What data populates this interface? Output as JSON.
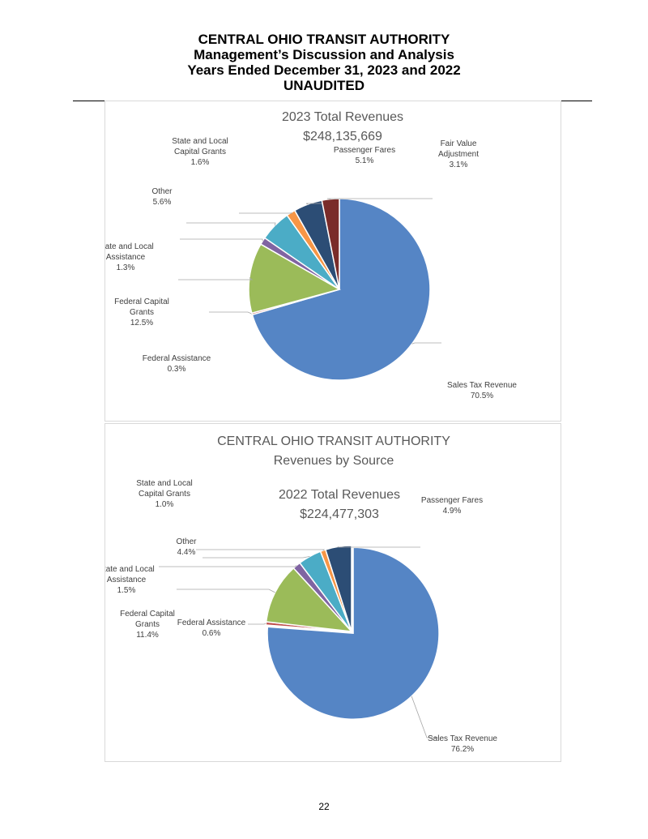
{
  "header": {
    "line1": "CENTRAL OHIO TRANSIT AUTHORITY",
    "line2": "Management’s Discussion and Analysis",
    "line3": "Years Ended December 31, 2023 and 2022",
    "line4": "UNAUDITED"
  },
  "page_number": "22",
  "colors": {
    "Sales Tax Revenue": "#5585c5",
    "Federal Assistance": "#c0504d",
    "Federal Capital Grants": "#9bbb59",
    "State and Local Assistance": "#8064a2",
    "Other": "#4bacc6",
    "State and Local Capital Grants": "#f79646",
    "Passenger Fares": "#2c4d75",
    "Fair Value Adjustment": "#7a2c2a"
  },
  "chart_data": [
    {
      "type": "pie",
      "title": "2023 Total Revenues",
      "subtitle": "$248,135,669",
      "start_at": "12 o'clock, clockwise",
      "slices": [
        {
          "label": [
            "Sales Tax Revenue"
          ],
          "value": 70.5,
          "pct": "70.5%"
        },
        {
          "label": [
            "Federal Assistance"
          ],
          "value": 0.3,
          "pct": "0.3%"
        },
        {
          "label": [
            "Federal Capital",
            "Grants"
          ],
          "value": 12.5,
          "pct": "12.5%"
        },
        {
          "label": [
            "State and Local",
            "Assistance"
          ],
          "value": 1.3,
          "pct": "1.3%"
        },
        {
          "label": [
            "Other"
          ],
          "value": 5.6,
          "pct": "5.6%"
        },
        {
          "label": [
            "State and Local",
            "Capital Grants"
          ],
          "value": 1.6,
          "pct": "1.6%"
        },
        {
          "label": [
            "Passenger Fares"
          ],
          "value": 5.1,
          "pct": "5.1%"
        },
        {
          "label": [
            "Fair Value",
            "Adjustment"
          ],
          "value": 3.1,
          "pct": "3.1%"
        }
      ]
    },
    {
      "type": "pie",
      "heading": [
        "CENTRAL OHIO TRANSIT AUTHORITY",
        "Revenues by Source"
      ],
      "title": "2022 Total Revenues",
      "subtitle": "$224,477,303",
      "start_at": "12 o'clock, clockwise",
      "slices": [
        {
          "label": [
            "Sales Tax Revenue"
          ],
          "value": 76.2,
          "pct": "76.2%"
        },
        {
          "label": [
            "Federal Assistance"
          ],
          "value": 0.6,
          "pct": "0.6%"
        },
        {
          "label": [
            "Federal Capital",
            "Grants"
          ],
          "value": 11.4,
          "pct": "11.4%"
        },
        {
          "label": [
            "State and Local",
            "Assistance"
          ],
          "value": 1.5,
          "pct": "1.5%"
        },
        {
          "label": [
            "Other"
          ],
          "value": 4.4,
          "pct": "4.4%"
        },
        {
          "label": [
            "State and Local",
            "Capital Grants"
          ],
          "value": 1.0,
          "pct": "1.0%"
        },
        {
          "label": [
            "Passenger Fares"
          ],
          "value": 4.9,
          "pct": "4.9%"
        }
      ]
    }
  ]
}
